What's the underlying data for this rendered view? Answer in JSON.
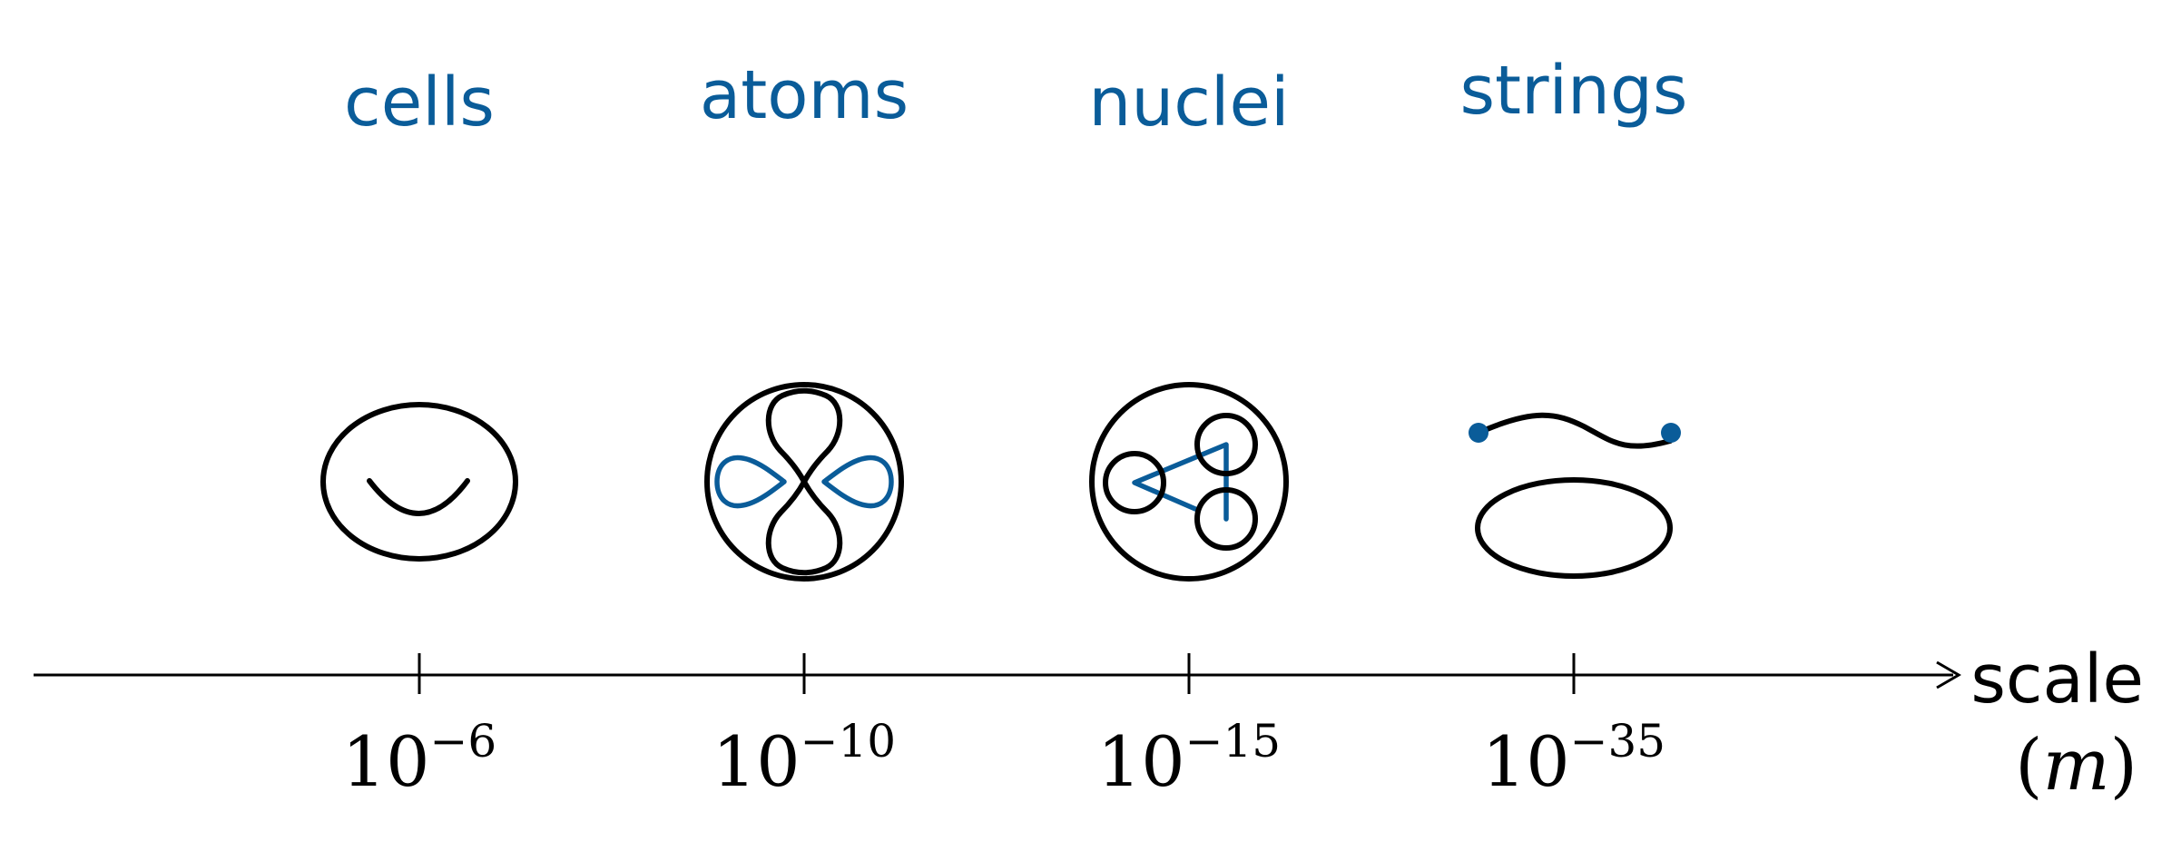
{
  "colors": {
    "accent": "#0a5c99",
    "ink": "#000000"
  },
  "axis": {
    "title": "scale",
    "unit_open": "(",
    "unit_symbol": "m",
    "unit_close": ")"
  },
  "scales": [
    {
      "label": "cells",
      "base": "10",
      "exponent": "−6",
      "icon": "cell-icon"
    },
    {
      "label": "atoms",
      "base": "10",
      "exponent": "−10",
      "icon": "atom-icon"
    },
    {
      "label": "nuclei",
      "base": "10",
      "exponent": "−15",
      "icon": "nucleus-icon"
    },
    {
      "label": "strings",
      "base": "10",
      "exponent": "−35",
      "icon": "string-icon"
    }
  ]
}
